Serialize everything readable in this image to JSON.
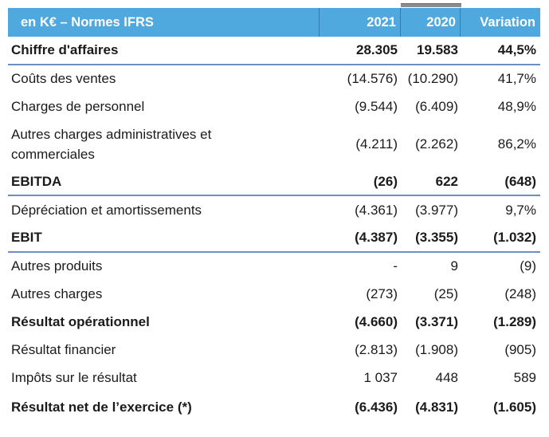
{
  "header": {
    "title": "en K€ – Normes IFRS",
    "columns": [
      "2021",
      "2020",
      "Variation"
    ]
  },
  "rows": [
    {
      "label": "Chiffre d'affaires",
      "y2021": "28.305",
      "y2020": "19.583",
      "variation": "44,5%",
      "bold": true,
      "divider": true
    },
    {
      "label": "Coûts des ventes",
      "y2021": "(14.576)",
      "y2020": "(10.290)",
      "variation": "41,7%",
      "bold": false,
      "divider": false
    },
    {
      "label": "Charges de personnel",
      "y2021": "(9.544)",
      "y2020": "(6.409)",
      "variation": "48,9%",
      "bold": false,
      "divider": false
    },
    {
      "label": "Autres charges administratives et commerciales",
      "y2021": "(4.211)",
      "y2020": "(2.262)",
      "variation": "86,2%",
      "bold": false,
      "divider": false
    },
    {
      "label": "EBITDA",
      "y2021": "(26)",
      "y2020": "622",
      "variation": "(648)",
      "bold": true,
      "divider": true
    },
    {
      "label": "Dépréciation et amortissements",
      "y2021": "(4.361)",
      "y2020": "(3.977)",
      "variation": "9,7%",
      "bold": false,
      "divider": false
    },
    {
      "label": "EBIT",
      "y2021": "(4.387)",
      "y2020": "(3.355)",
      "variation": "(1.032)",
      "bold": true,
      "divider": true
    },
    {
      "label": "Autres produits",
      "y2021": "-",
      "y2020": "9",
      "variation": "(9)",
      "bold": false,
      "divider": false
    },
    {
      "label": "Autres charges",
      "y2021": "(273)",
      "y2020": "(25)",
      "variation": "(248)",
      "bold": false,
      "divider": false
    },
    {
      "label": "Résultat opérationnel",
      "y2021": "(4.660)",
      "y2020": "(3.371)",
      "variation": "(1.289)",
      "bold": true,
      "divider": false
    },
    {
      "label": "Résultat financier",
      "y2021": "(2.813)",
      "y2020": "(1.908)",
      "variation": "(905)",
      "bold": false,
      "divider": false
    },
    {
      "label": "Impôts sur le résultat",
      "y2021": "1 037",
      "y2020": "448",
      "variation": "589",
      "bold": false,
      "divider": false
    },
    {
      "label": "Résultat net de l’exercice (*)",
      "y2021": "(6.436)",
      "y2020": "(4.831)",
      "variation": "(1.605)",
      "bold": true,
      "divider": false
    }
  ],
  "colors": {
    "header_bg": "#4FA8DE",
    "header_separator": "#2E7CB8",
    "divider_rule": "#6B8FC5",
    "text": "#1B1B1B",
    "artifact_gray": "#8D8D8D"
  }
}
